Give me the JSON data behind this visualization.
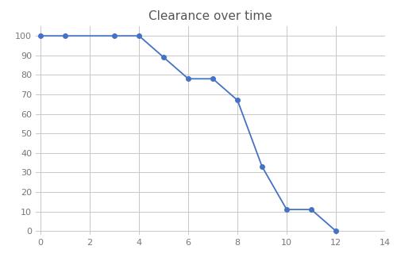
{
  "title": "Clearance over time",
  "x": [
    0,
    1,
    3,
    4,
    5,
    6,
    7,
    8,
    9,
    10,
    11,
    12
  ],
  "y": [
    100,
    100,
    100,
    100,
    89,
    78,
    78,
    67,
    33,
    11,
    11,
    0
  ],
  "xlim": [
    -0.2,
    14
  ],
  "ylim": [
    -2,
    105
  ],
  "xticks": [
    0,
    2,
    4,
    6,
    8,
    10,
    12,
    14
  ],
  "yticks": [
    0,
    10,
    20,
    30,
    40,
    50,
    60,
    70,
    80,
    90,
    100
  ],
  "line_color": "#4472C4",
  "marker": "o",
  "marker_size": 4,
  "line_width": 1.3,
  "title_fontsize": 11,
  "grid_color": "#c8c8c8",
  "bg_color": "#ffffff",
  "tick_fontsize": 8,
  "tick_color": "#777777",
  "title_color": "#555555"
}
